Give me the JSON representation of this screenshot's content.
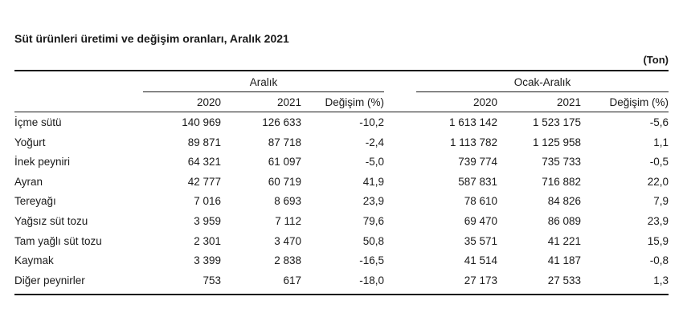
{
  "title": "Süt ürünleri üretimi ve değişim oranları, Aralık 2021",
  "unit": "(Ton)",
  "groups": [
    "Aralık",
    "Ocak-Aralık"
  ],
  "columns": [
    "2020",
    "2021",
    "Değişim (%)",
    "2020",
    "2021",
    "Değişim (%)"
  ],
  "rows": [
    {
      "label": "İçme sütü",
      "values": [
        "140 969",
        "126 633",
        "-10,2",
        "1 613 142",
        "1 523 175",
        "-5,6"
      ]
    },
    {
      "label": "Yoğurt",
      "values": [
        "89 871",
        "87 718",
        "-2,4",
        "1 113 782",
        "1 125 958",
        "1,1"
      ]
    },
    {
      "label": "İnek peyniri",
      "values": [
        "64 321",
        "61 097",
        "-5,0",
        "739 774",
        "735 733",
        "-0,5"
      ]
    },
    {
      "label": "Ayran",
      "values": [
        "42 777",
        "60 719",
        "41,9",
        "587 831",
        "716 882",
        "22,0"
      ]
    },
    {
      "label": "Tereyağı",
      "values": [
        "7 016",
        "8 693",
        "23,9",
        "78 610",
        "84 826",
        "7,9"
      ]
    },
    {
      "label": "Yağsız süt tozu",
      "values": [
        "3 959",
        "7 112",
        "79,6",
        "69 470",
        "86 089",
        "23,9"
      ]
    },
    {
      "label": "Tam yağlı süt tozu",
      "values": [
        "2 301",
        "3 470",
        "50,8",
        "35 571",
        "41 221",
        "15,9"
      ]
    },
    {
      "label": "Kaymak",
      "values": [
        "3 399",
        "2 838",
        "-16,5",
        "41 514",
        "41 187",
        "-0,8"
      ]
    },
    {
      "label": "Diğer peynirler",
      "values": [
        "753",
        "617",
        "-18,0",
        "27 173",
        "27 533",
        "1,3"
      ]
    }
  ]
}
